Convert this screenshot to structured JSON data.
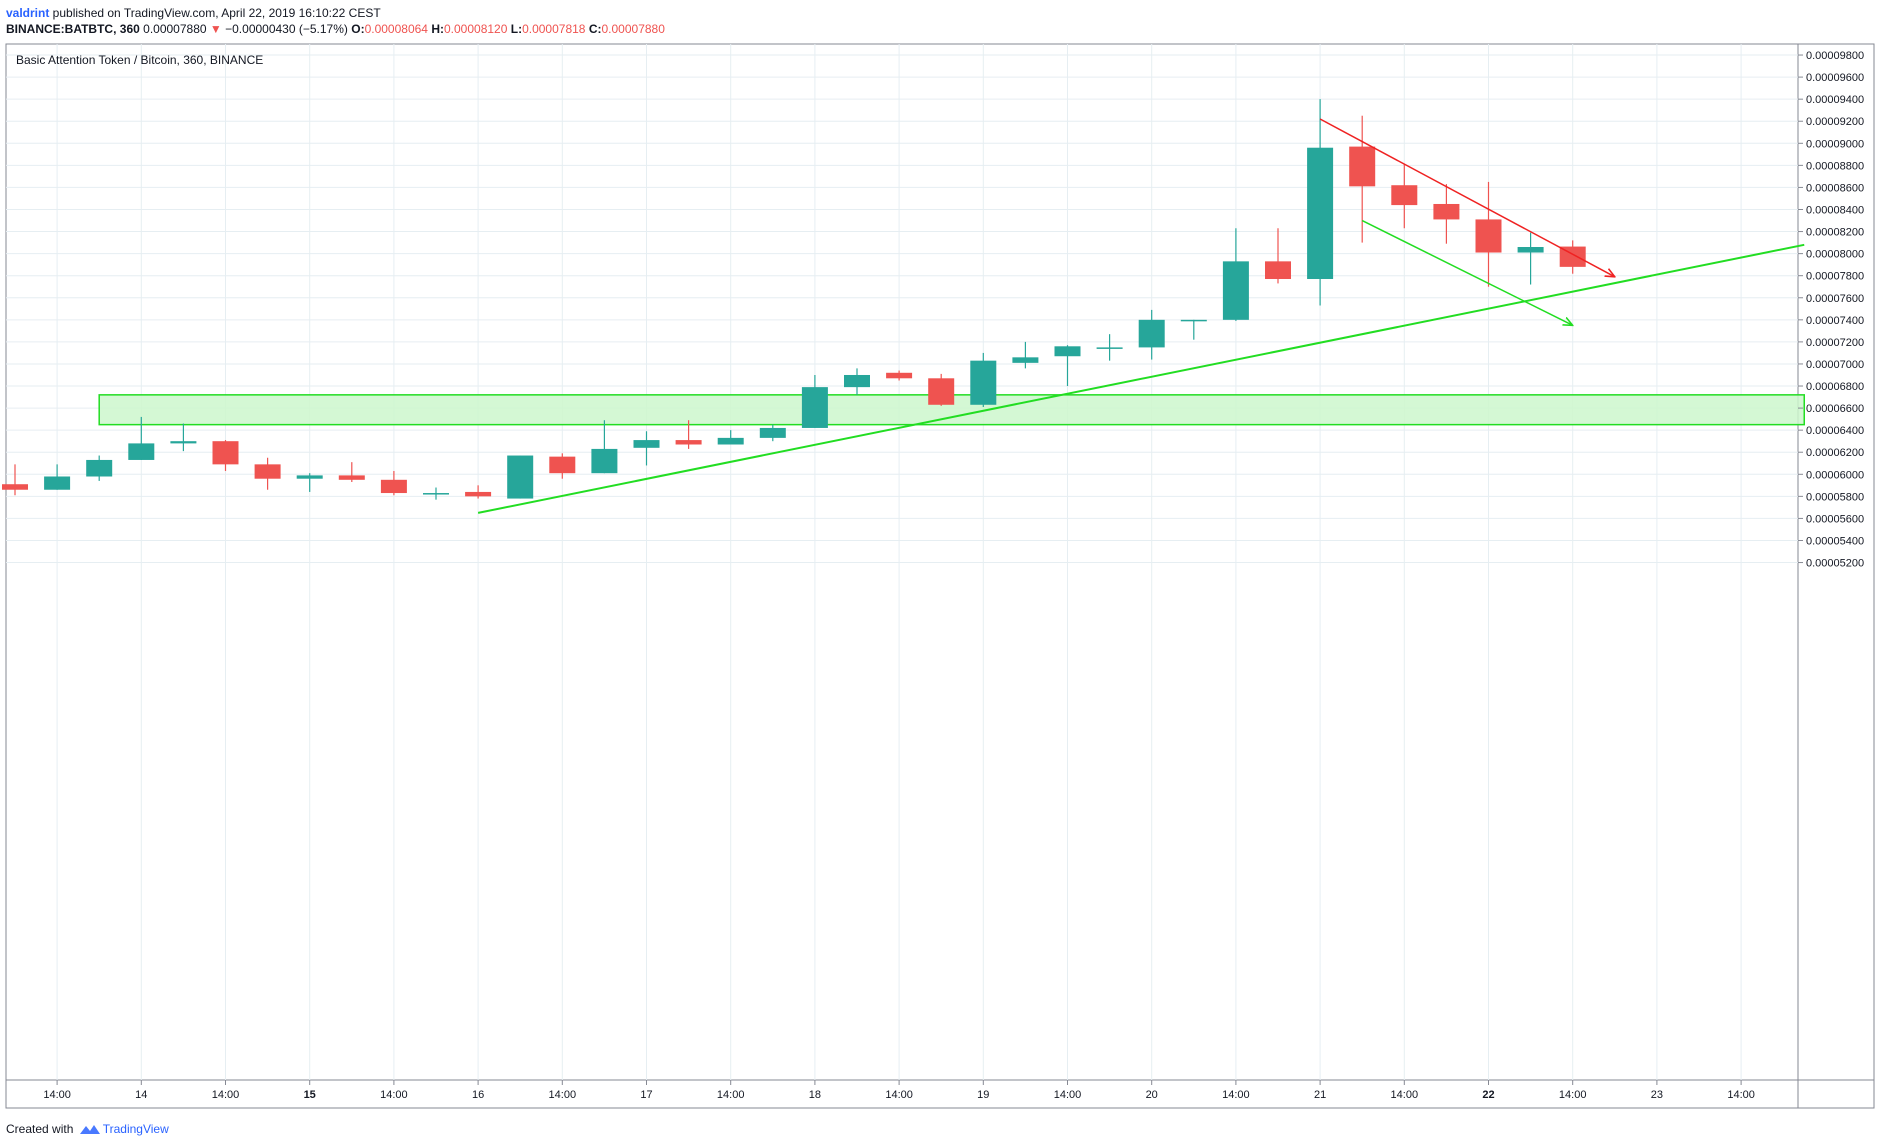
{
  "header": {
    "user": "valdrint",
    "published": " published on TradingView.com, April 22, 2019 16:10:22 CEST",
    "symbol": "BINANCE:BATBTC, 360",
    "last": "0.00007880",
    "arrow": "▼",
    "change": "−0.00000430 (−5.17%)",
    "o_label": "O:",
    "o_value": "0.00008064",
    "h_label": "H:",
    "h_value": "0.00008120",
    "l_label": "L:",
    "l_value": "0.00007818",
    "c_label": "C:",
    "c_value": "0.00007880"
  },
  "footer": {
    "created": "Created with",
    "brand": "TradingView"
  },
  "colors": {
    "up": "#26a69a",
    "down": "#ef5350",
    "grid": "#e6eef2",
    "zone_fill": "#ccf7cc",
    "zone_stroke": "#22dd22",
    "support": "#22dd22",
    "resistance": "#ef2222",
    "projection": "#22dd22"
  },
  "chart_data": {
    "type": "candlestick",
    "title": "Basic Attention Token / Bitcoin, 360, BINANCE",
    "ylim": [
      5.1e-06,
      9.9e-05
    ],
    "yticks": [
      "0.00005200",
      "0.00005400",
      "0.00005600",
      "0.00005800",
      "0.00006000",
      "0.00006200",
      "0.00006400",
      "0.00006600",
      "0.00006800",
      "0.00007000",
      "0.00007200",
      "0.00007400",
      "0.00007600",
      "0.00007800",
      "0.00008000",
      "0.00008200",
      "0.00008400",
      "0.00008600",
      "0.00008800",
      "0.00009000",
      "0.00009200",
      "0.00009400",
      "0.00009600",
      "0.00009800"
    ],
    "xticks": [
      {
        "label": "14:00",
        "bar": 1,
        "bold": false
      },
      {
        "label": "14",
        "bar": 3,
        "bold": false
      },
      {
        "label": "14:00",
        "bar": 5,
        "bold": false
      },
      {
        "label": "15",
        "bar": 7,
        "bold": true
      },
      {
        "label": "14:00",
        "bar": 9,
        "bold": false
      },
      {
        "label": "16",
        "bar": 11,
        "bold": false
      },
      {
        "label": "14:00",
        "bar": 13,
        "bold": false
      },
      {
        "label": "17",
        "bar": 15,
        "bold": false
      },
      {
        "label": "14:00",
        "bar": 17,
        "bold": false
      },
      {
        "label": "18",
        "bar": 19,
        "bold": false
      },
      {
        "label": "14:00",
        "bar": 21,
        "bold": false
      },
      {
        "label": "19",
        "bar": 23,
        "bold": false
      },
      {
        "label": "14:00",
        "bar": 25,
        "bold": false
      },
      {
        "label": "20",
        "bar": 27,
        "bold": false
      },
      {
        "label": "14:00",
        "bar": 29,
        "bold": false
      },
      {
        "label": "21",
        "bar": 31,
        "bold": false
      },
      {
        "label": "14:00",
        "bar": 33,
        "bold": false
      },
      {
        "label": "22",
        "bar": 35,
        "bold": true
      },
      {
        "label": "14:00",
        "bar": 37,
        "bold": false
      },
      {
        "label": "23",
        "bar": 39,
        "bold": false
      },
      {
        "label": "14:00",
        "bar": 41,
        "bold": false
      }
    ],
    "candles": [
      [
        5.91e-05,
        6.09e-05,
        5.81e-05,
        5.86e-05
      ],
      [
        5.86e-05,
        6.09e-05,
        5.86e-05,
        5.98e-05
      ],
      [
        5.98e-05,
        6.17e-05,
        5.94e-05,
        6.13e-05
      ],
      [
        6.13e-05,
        6.52e-05,
        6.13e-05,
        6.28e-05
      ],
      [
        6.28e-05,
        6.46e-05,
        6.21e-05,
        6.3e-05
      ],
      [
        6.3e-05,
        6.31e-05,
        6.03e-05,
        6.09e-05
      ],
      [
        6.09e-05,
        6.15e-05,
        5.86e-05,
        5.96e-05
      ],
      [
        5.96e-05,
        6.01e-05,
        5.84e-05,
        5.99e-05
      ],
      [
        5.99e-05,
        6.11e-05,
        5.93e-05,
        5.95e-05
      ],
      [
        5.95e-05,
        6.03e-05,
        5.81e-05,
        5.83e-05
      ],
      [
        5.83e-05,
        5.88e-05,
        5.77e-05,
        5.83e-05
      ],
      [
        5.84e-05,
        5.9e-05,
        5.78e-05,
        5.8e-05
      ],
      [
        5.78e-05,
        6.17e-05,
        5.78e-05,
        6.17e-05
      ],
      [
        6.16e-05,
        6.19e-05,
        5.96e-05,
        6.01e-05
      ],
      [
        6.01e-05,
        6.49e-05,
        6.01e-05,
        6.23e-05
      ],
      [
        6.24e-05,
        6.39e-05,
        6.08e-05,
        6.31e-05
      ],
      [
        6.31e-05,
        6.49e-05,
        6.23e-05,
        6.27e-05
      ],
      [
        6.27e-05,
        6.4e-05,
        6.27e-05,
        6.33e-05
      ],
      [
        6.33e-05,
        6.45e-05,
        6.3e-05,
        6.42e-05
      ],
      [
        6.42e-05,
        6.9e-05,
        6.42e-05,
        6.79e-05
      ],
      [
        6.79e-05,
        6.96e-05,
        6.72e-05,
        6.9e-05
      ],
      [
        6.92e-05,
        6.94e-05,
        6.85e-05,
        6.87e-05
      ],
      [
        6.87e-05,
        6.91e-05,
        6.62e-05,
        6.63e-05
      ],
      [
        6.63e-05,
        7.1e-05,
        6.61e-05,
        7.03e-05
      ],
      [
        7.01e-05,
        7.2e-05,
        6.96e-05,
        7.06e-05
      ],
      [
        7.07e-05,
        7.17e-05,
        6.8e-05,
        7.16e-05
      ],
      [
        7.15e-05,
        7.27e-05,
        7.03e-05,
        7.15e-05
      ],
      [
        7.15e-05,
        7.49e-05,
        7.04e-05,
        7.4e-05
      ],
      [
        7.4e-05,
        7.4e-05,
        7.22e-05,
        7.4e-05
      ],
      [
        7.4e-05,
        8.23e-05,
        7.39e-05,
        7.93e-05
      ],
      [
        7.93e-05,
        8.23e-05,
        7.73e-05,
        7.77e-05
      ],
      [
        7.77e-05,
        9.4e-05,
        7.53e-05,
        8.96e-05
      ],
      [
        8.97e-05,
        9.25e-05,
        8.1e-05,
        8.61e-05
      ],
      [
        8.62e-05,
        8.81e-05,
        8.23e-05,
        8.44e-05
      ],
      [
        8.45e-05,
        8.63e-05,
        8.09e-05,
        8.31e-05
      ],
      [
        8.31e-05,
        8.65e-05,
        7.7e-05,
        8.01e-05
      ],
      [
        8.01e-05,
        8.19e-05,
        7.72e-05,
        8.06e-05
      ],
      [
        8.064e-05,
        8.12e-05,
        7.818e-05,
        7.88e-05
      ]
    ],
    "drawings": {
      "zone": {
        "from_bar": 2,
        "to_bar": 42.5,
        "y_top": 6.72e-05,
        "y_bottom": 6.45e-05
      },
      "support_line": {
        "from_bar": 11.0,
        "from_y": 5.65e-05,
        "to_bar": 42.5,
        "to_y": 8.08e-05
      },
      "resistance_arrow": {
        "from_bar": 31.0,
        "from_y": 9.22e-05,
        "to_bar": 38.0,
        "to_y": 7.79e-05
      },
      "projection_arrow": {
        "from_bar": 32.0,
        "from_y": 8.3e-05,
        "to_bar": 37.0,
        "to_y": 7.35e-05
      }
    }
  }
}
